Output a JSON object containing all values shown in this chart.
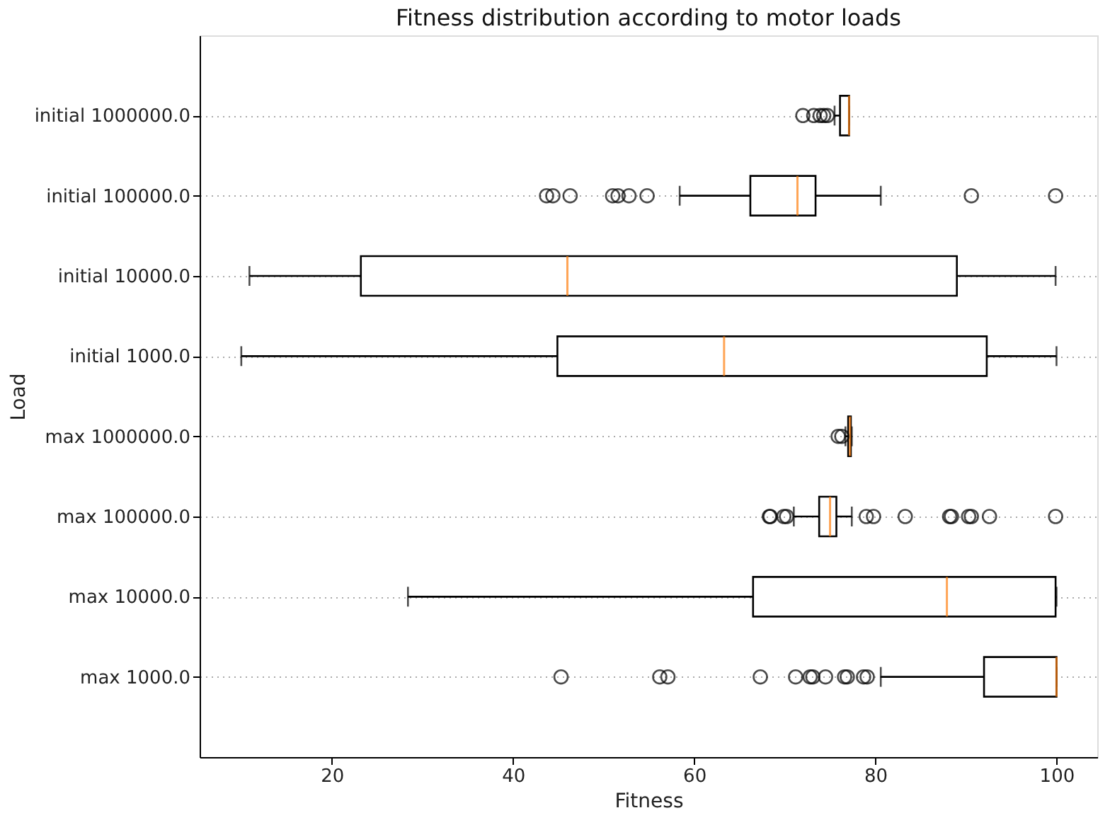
{
  "chart_data": {
    "type": "box",
    "title": "Fitness distribution according to motor loads",
    "xlabel": "Fitness",
    "ylabel": "Load",
    "orientation": "horizontal",
    "categories": [
      "initial 1000000.0",
      "initial 100000.0",
      "initial 10000.0",
      "initial 1000.0",
      "max 1000000.0",
      "max 100000.0",
      "max 10000.0",
      "max 1000.0"
    ],
    "xlim": [
      5.4,
      104.5
    ],
    "xticks": [
      20,
      40,
      60,
      80,
      100
    ],
    "grid": "y",
    "series": [
      {
        "color": "#000000",
        "boxes": [
          {
            "low": 75.5,
            "q1": 76.1,
            "median": 77.1,
            "q3": 77.1,
            "high": 77.1,
            "outliers": [
              72.0,
              73.2,
              73.9,
              74.3,
              74.7
            ]
          },
          {
            "low": 58.4,
            "q1": 66.2,
            "median": 71.4,
            "q3": 73.4,
            "high": 80.6,
            "outliers": [
              43.7,
              44.4,
              46.3,
              51.0,
              51.6,
              52.8,
              54.8,
              90.6,
              99.9
            ]
          },
          {
            "low": 10.9,
            "q1": 23.2,
            "median": 46.0,
            "q3": 89.0,
            "high": 99.9
          },
          {
            "low": 10.0,
            "q1": 44.9,
            "median": 63.3,
            "q3": 92.3,
            "high": 100.0
          },
          {
            "low": 76.7,
            "q1": 77.0,
            "median": 77.2,
            "q3": 77.3,
            "high": 77.4,
            "outliers": [
              75.9,
              76.3
            ]
          },
          {
            "low": 71.0,
            "q1": 73.8,
            "median": 75.0,
            "q3": 75.7,
            "high": 77.4,
            "outliers": [
              68.3,
              68.4,
              69.9,
              70.2,
              79.0,
              79.8,
              83.3,
              88.2,
              88.4,
              90.3,
              90.6,
              92.6,
              99.9
            ]
          },
          {
            "low": 28.4,
            "q1": 66.5,
            "median": 87.9,
            "q3": 99.9,
            "high": 100.0
          },
          {
            "low": 80.6,
            "q1": 92.0,
            "median": 100.0,
            "q3": 100.0,
            "high": 100.0,
            "outliers": [
              45.3,
              56.2,
              57.1,
              67.3,
              71.2,
              72.8,
              73.1,
              74.5,
              76.6,
              76.9,
              78.7,
              79.1
            ]
          }
        ]
      }
    ]
  }
}
